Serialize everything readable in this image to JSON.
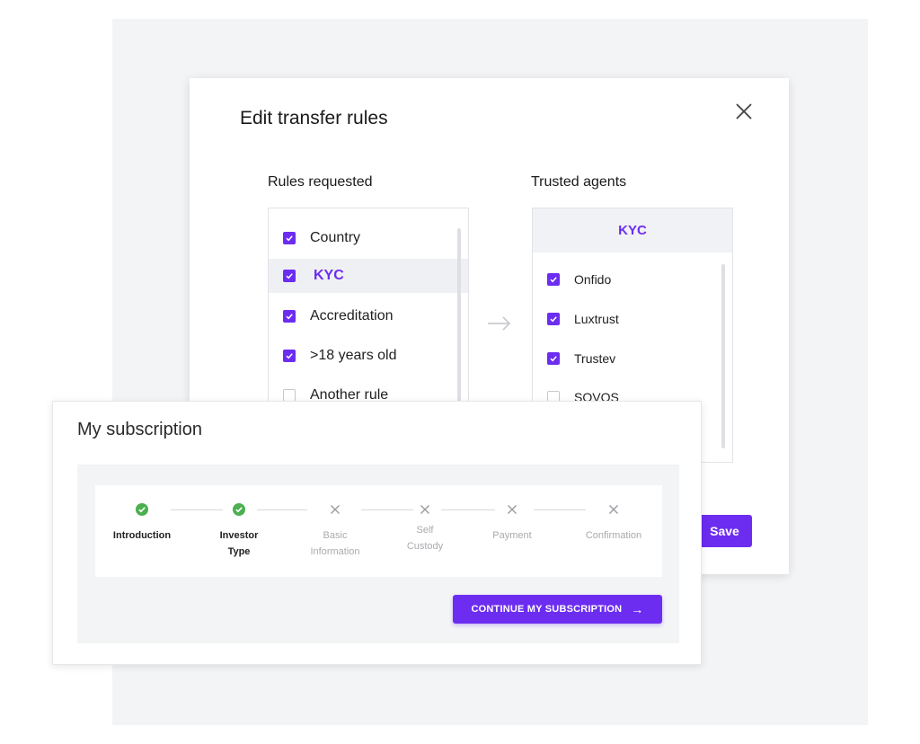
{
  "modal": {
    "title": "Edit transfer rules",
    "rules_header": "Rules requested",
    "agents_header": "Trusted agents",
    "rules": [
      {
        "label": "Country",
        "checked": true
      },
      {
        "label": "KYC",
        "checked": true,
        "selected": true
      },
      {
        "label": "Accreditation",
        "checked": true
      },
      {
        "label": ">18 years old",
        "checked": true
      },
      {
        "label": "Another rule",
        "checked": false
      }
    ],
    "agents_title": "KYC",
    "agents": [
      {
        "label": "Onfido",
        "checked": true
      },
      {
        "label": "Luxtrust",
        "checked": true
      },
      {
        "label": "Trustev",
        "checked": true
      },
      {
        "label": "SOVOS",
        "checked": false
      }
    ],
    "save_label": "Save"
  },
  "subscription": {
    "title": "My subscription",
    "steps": [
      {
        "line1": "Introduction",
        "line2": "",
        "status": "done"
      },
      {
        "line1": "Investor",
        "line2": "Type",
        "status": "done"
      },
      {
        "line1": "Basic",
        "line2": "Information",
        "status": "pending"
      },
      {
        "line1": "Self",
        "line2": "Custody",
        "status": "pending"
      },
      {
        "line1": "Payment",
        "line2": "",
        "status": "pending"
      },
      {
        "line1": "Confirmation",
        "line2": "",
        "status": "pending"
      }
    ],
    "continue_label": "CONTINUE MY SUBSCRIPTION",
    "continue_arrow": "→"
  },
  "colors": {
    "accent": "#6c2df0",
    "done": "#4caf50",
    "pending": "#9a9aa0"
  },
  "icons": {
    "close": "close-icon",
    "transfer_arrow": "arrow-right-icon",
    "step_done": "check-circle-icon",
    "step_pending": "x-icon"
  }
}
